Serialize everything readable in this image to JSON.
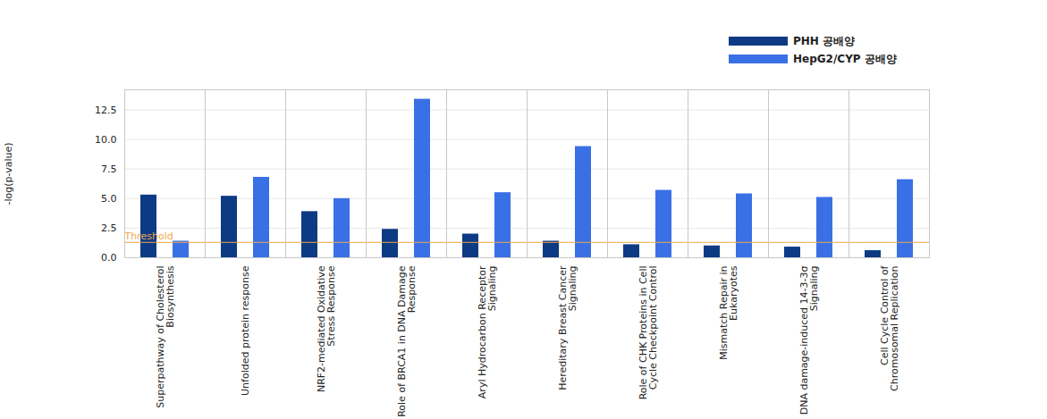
{
  "chart_data": {
    "type": "bar",
    "categories": [
      "Superpathway of Cholesterol Biosynthesis",
      "Unfolded protein response",
      "NRF2-mediated Oxidative Stress Response",
      "Role of BRCA1 in DNA Damage Response",
      "Aryl Hydrocarbon Receptor Signaling",
      "Hereditary Breast Cancer Signaling",
      "Role of CHK Proteins in Cell Cycle Checkpoint Control",
      "Mismatch Repair in Eukaryotes",
      "DNA damage-induced 14-3-3σ Signaling",
      "Cell Cycle Control of Chromosomal Replication"
    ],
    "series": [
      {
        "name": "PHH 공배양",
        "color": "#0d3a84",
        "values": [
          5.3,
          5.2,
          3.9,
          2.4,
          2.0,
          1.4,
          1.1,
          1.0,
          0.9,
          0.6
        ]
      },
      {
        "name": "HepG2/CYP 공배양",
        "color": "#3a70e6",
        "values": [
          1.4,
          6.8,
          5.0,
          13.4,
          5.5,
          9.4,
          5.7,
          5.4,
          5.1,
          6.6
        ]
      }
    ],
    "ylabel": "-log(p-value)",
    "ylim": [
      0,
      14.2
    ],
    "yticks": [
      {
        "value": 0,
        "label": "0.0"
      },
      2.5,
      {
        "value": 5,
        "label": "5.0"
      },
      7.5,
      {
        "value": 10,
        "label": "10.0"
      },
      12.5
    ],
    "grid": true,
    "legend": "top-right",
    "threshold": {
      "value": 1.3,
      "label": "Threshold",
      "color": "#f0a848"
    }
  }
}
